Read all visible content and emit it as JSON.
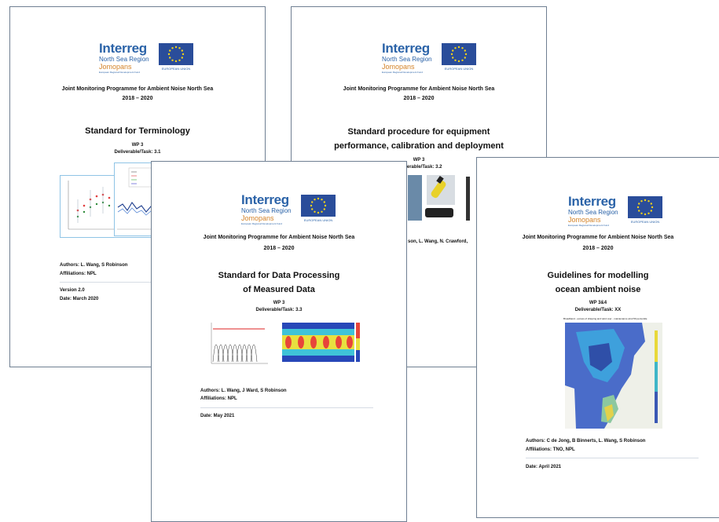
{
  "logo": {
    "brand": "Interreg",
    "region": "North Sea Region",
    "project": "Jomopans",
    "fund": "European Regional Development Fund",
    "eu": "EUROPEAN UNION"
  },
  "programme": "Joint Monitoring Programme for Ambient Noise North Sea",
  "years": "2018 – 2020",
  "docs": {
    "terminology": {
      "title": "Standard for Terminology",
      "wp": "WP 3",
      "deliverable": "Deliverable/Task: 3.1",
      "authors": "Authors: L. Wang, S Robinson",
      "affiliations": "Affiliations: NPL",
      "version": "Version 2.0",
      "date": "Date: March 2020"
    },
    "equipment": {
      "title_line1": "Standard procedure for equipment",
      "title_line2": "performance, calibration and deployment",
      "wp": "WP 3",
      "deliverable": "Deliverable/Task: 3.2",
      "authors_partial": "son, L. Wang, N. Crawford,"
    },
    "processing": {
      "title_line1": "Standard for Data Processing",
      "title_line2": "of Measured Data",
      "wp": "WP 3",
      "deliverable": "Deliverable/Task: 3.3",
      "authors": "Authors: L. Wang, J Ward, S Robinson",
      "affiliations": "Affiliations: NPL",
      "date": "Date: May 2021"
    },
    "modelling": {
      "title_line1": "Guidelines for modelling",
      "title_line2": "ocean ambient noise",
      "wp": "WP 3&4",
      "deliverable": "Deliverable/Task: XX",
      "map_caption": "Broadband - excess of shipping and wind over - maintenance wind 50 percentile",
      "authors": "Authors: C de Jong, B Binnerts, L. Wang, S Robinson",
      "affiliations": "Affiliations:   TNO, NPL",
      "date": "Date: April 2021"
    }
  }
}
